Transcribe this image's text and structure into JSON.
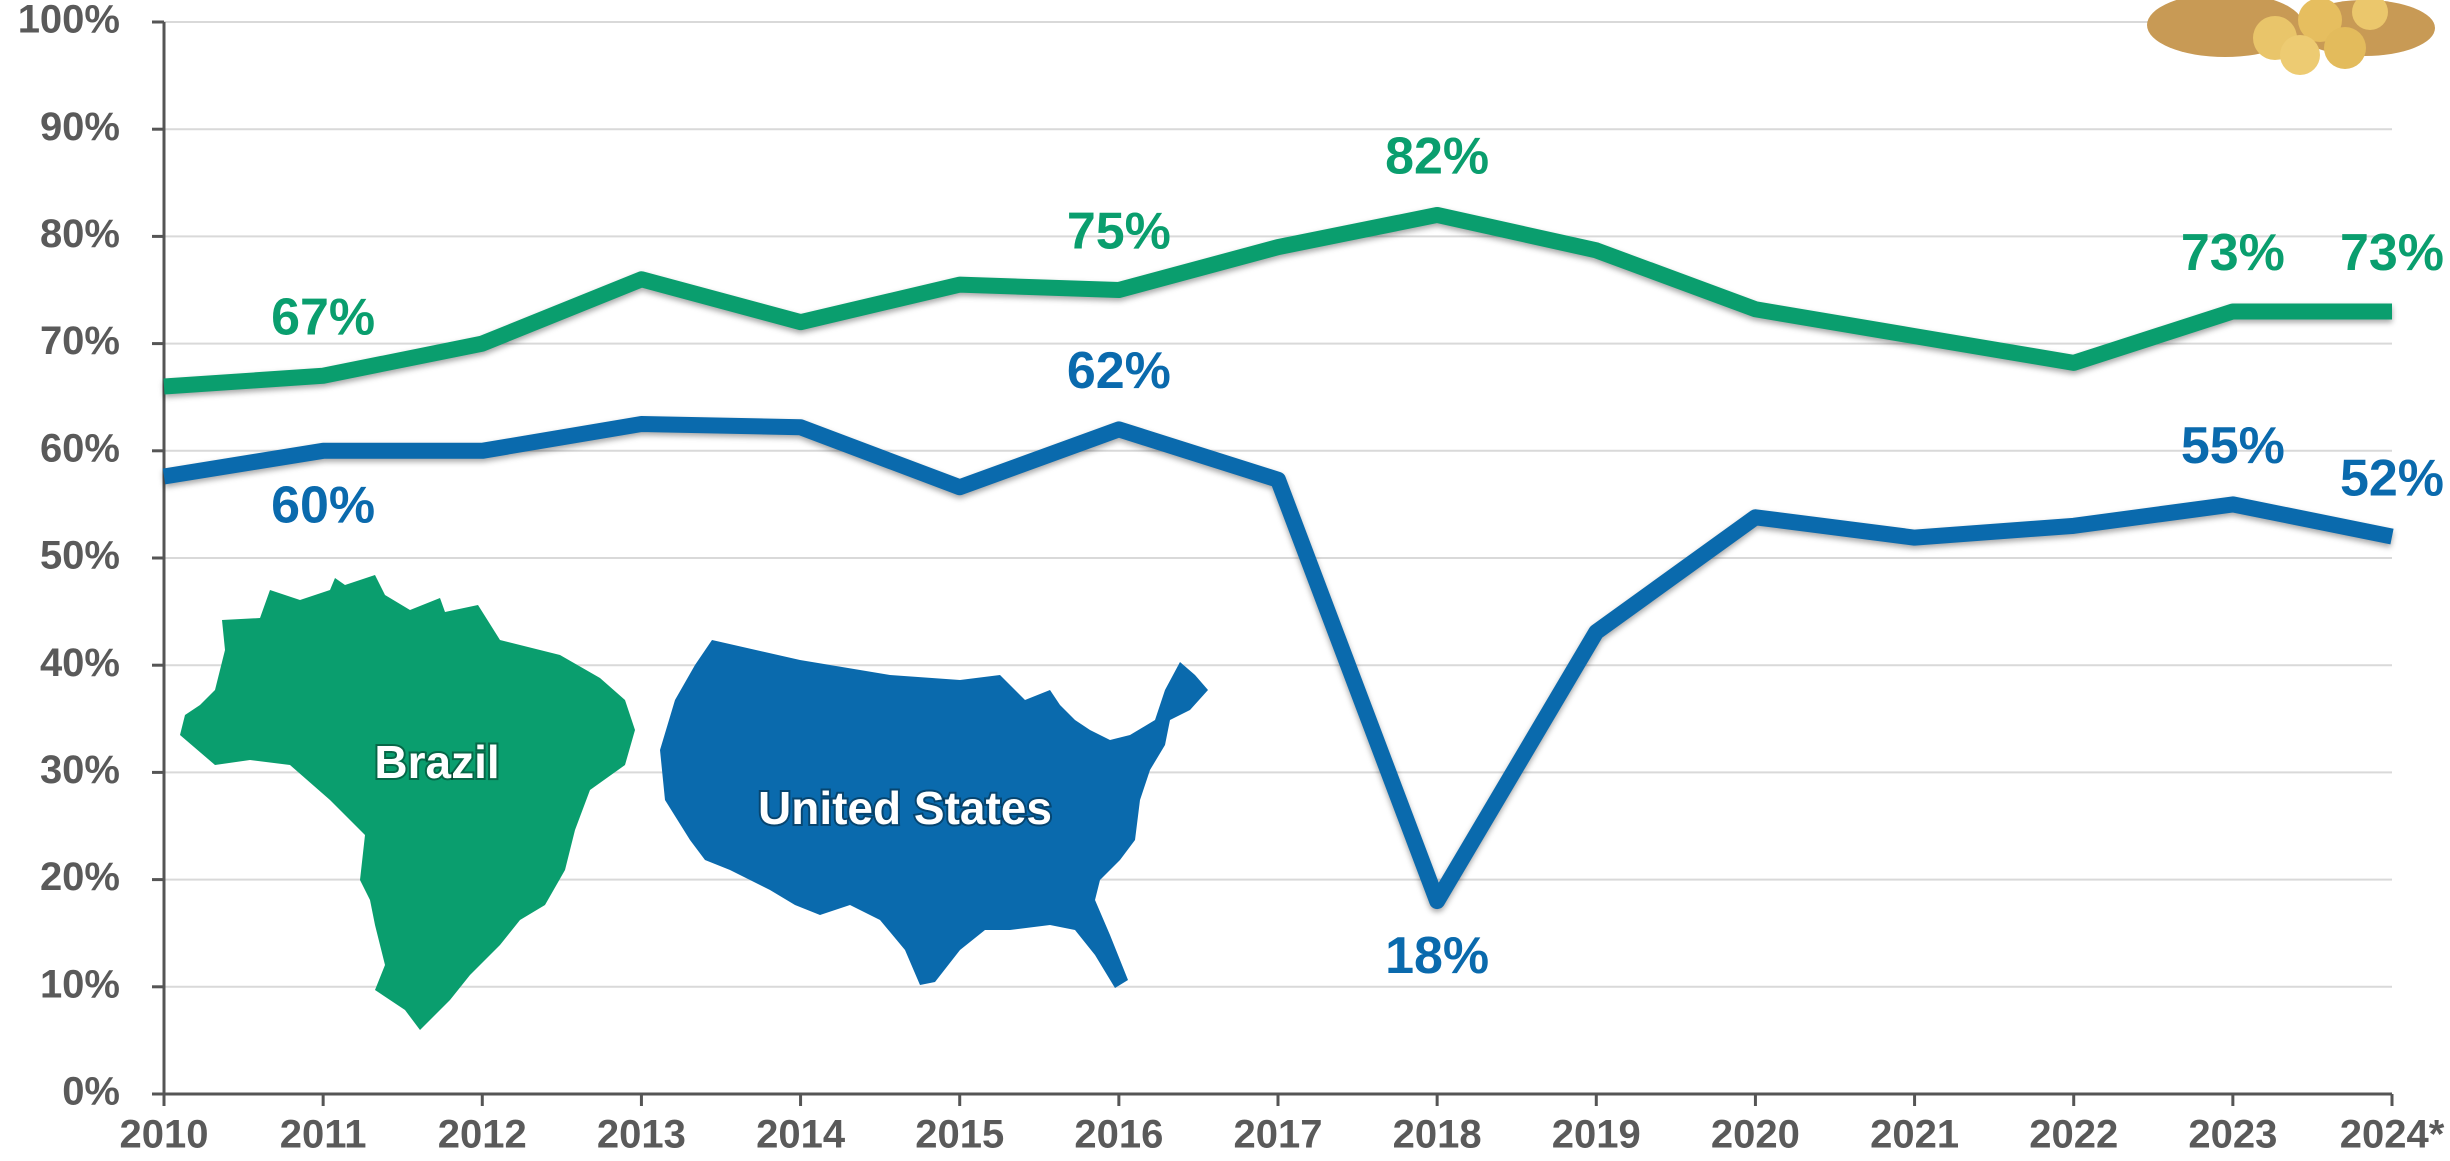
{
  "chart_data": {
    "type": "line",
    "categories": [
      "2010",
      "2011",
      "2012",
      "2013",
      "2014",
      "2015",
      "2016",
      "2017",
      "2018",
      "2019",
      "2020",
      "2021",
      "2022",
      "2023",
      "2024*"
    ],
    "series": [
      {
        "name": "Brazil",
        "color": "#0a9e6e",
        "values": [
          66,
          67,
          70,
          76,
          72,
          75.5,
          75,
          79,
          82,
          78.7,
          73.2,
          70.7,
          68.2,
          73,
          73
        ],
        "value_labels": [
          null,
          "67%",
          null,
          null,
          null,
          null,
          "75%",
          null,
          "82%",
          null,
          null,
          null,
          null,
          "73%",
          "73%"
        ]
      },
      {
        "name": "United States",
        "color": "#0a6aad",
        "values": [
          57.6,
          60,
          60,
          62.5,
          62.2,
          56.6,
          62,
          57.3,
          18,
          43.1,
          53.8,
          51.9,
          53,
          55,
          52
        ],
        "value_labels": [
          null,
          "60%",
          null,
          null,
          null,
          null,
          "62%",
          null,
          "18%",
          null,
          null,
          null,
          null,
          "55%",
          "52%"
        ]
      }
    ],
    "ylim": [
      0,
      100
    ],
    "yticks": [
      {
        "value": 0,
        "label": "0%"
      },
      {
        "value": 10,
        "label": "10%"
      },
      {
        "value": 20,
        "label": "20%"
      },
      {
        "value": 30,
        "label": "30%"
      },
      {
        "value": 40,
        "label": "40%"
      },
      {
        "value": 50,
        "label": "50%"
      },
      {
        "value": 60,
        "label": "60%"
      },
      {
        "value": 70,
        "label": "70%"
      },
      {
        "value": 80,
        "label": "80%"
      },
      {
        "value": 90,
        "label": "90%"
      },
      {
        "value": 100,
        "label": "100%"
      }
    ],
    "grid": true
  }
}
